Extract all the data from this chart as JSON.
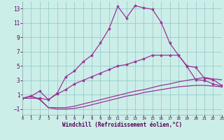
{
  "xlabel": "Windchill (Refroidissement éolien,°C)",
  "background_color": "#cceee8",
  "grid_color": "#99cccc",
  "line_color": "#993399",
  "xlim": [
    0,
    23
  ],
  "ylim": [
    -1.8,
    14.0
  ],
  "xticks": [
    0,
    1,
    2,
    3,
    4,
    5,
    6,
    7,
    8,
    9,
    10,
    11,
    12,
    13,
    14,
    15,
    16,
    17,
    18,
    19,
    20,
    21,
    22,
    23
  ],
  "yticks": [
    -1,
    1,
    3,
    5,
    7,
    9,
    11,
    13
  ],
  "line1_x": [
    0,
    1,
    2,
    3,
    4,
    5,
    6,
    7,
    8,
    9,
    10,
    11,
    12,
    13,
    14,
    15,
    16,
    17,
    18,
    19,
    20,
    21,
    22,
    23
  ],
  "line1_y": [
    0.5,
    0.8,
    1.5,
    0.3,
    1.2,
    3.5,
    4.3,
    5.6,
    6.5,
    8.2,
    10.2,
    13.3,
    11.7,
    13.4,
    13.1,
    12.9,
    11.1,
    8.2,
    6.5,
    4.9,
    3.1,
    3.0,
    2.5,
    2.2
  ],
  "line2_x": [
    0,
    2,
    3,
    4,
    5,
    6,
    7,
    8,
    9,
    10,
    11,
    12,
    13,
    14,
    15,
    16,
    17,
    18,
    19,
    20,
    21,
    22,
    23
  ],
  "line2_y": [
    0.5,
    0.5,
    0.3,
    1.1,
    1.7,
    2.5,
    3.0,
    3.5,
    4.0,
    4.5,
    5.0,
    5.2,
    5.6,
    6.0,
    6.5,
    6.5,
    6.5,
    6.5,
    5.0,
    4.8,
    3.3,
    3.1,
    2.3
  ],
  "line3_x": [
    0,
    1,
    2,
    3,
    4,
    5,
    6,
    7,
    8,
    9,
    10,
    11,
    12,
    13,
    14,
    15,
    16,
    17,
    18,
    19,
    20,
    21,
    22,
    23
  ],
  "line3_y": [
    0.5,
    0.8,
    0.4,
    -0.8,
    -0.8,
    -0.8,
    -0.6,
    -0.3,
    0.0,
    0.3,
    0.6,
    0.9,
    1.2,
    1.5,
    1.7,
    2.0,
    2.3,
    2.5,
    2.8,
    3.0,
    3.2,
    3.4,
    3.2,
    3.1
  ],
  "line4_x": [
    0,
    1,
    2,
    3,
    4,
    5,
    6,
    7,
    8,
    9,
    10,
    11,
    12,
    13,
    14,
    15,
    16,
    17,
    18,
    19,
    20,
    21,
    22,
    23
  ],
  "line4_y": [
    0.5,
    0.8,
    0.3,
    -0.8,
    -1.0,
    -1.0,
    -0.9,
    -0.7,
    -0.4,
    -0.1,
    0.2,
    0.5,
    0.8,
    1.0,
    1.3,
    1.5,
    1.7,
    1.9,
    2.1,
    2.2,
    2.3,
    2.3,
    2.2,
    2.1
  ]
}
